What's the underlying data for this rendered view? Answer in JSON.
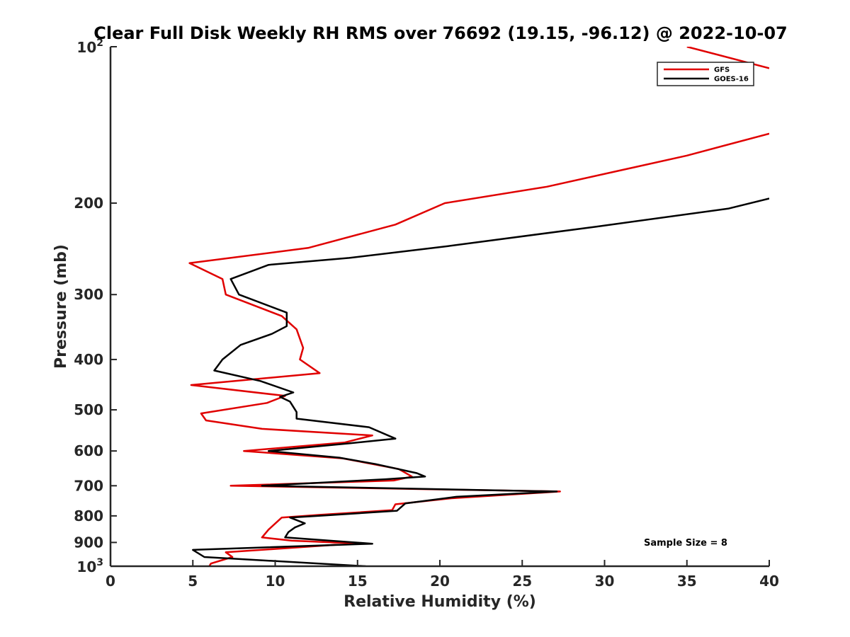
{
  "chart_data": {
    "type": "line",
    "title": "Clear Full Disk Weekly RH RMS over 76692 (19.15, -96.12) @ 2022-10-07",
    "xlabel": "Relative Humidity (%)",
    "ylabel": "Pressure (mb)",
    "xlim": [
      0,
      40
    ],
    "ylim": [
      100,
      1000
    ],
    "y_scale": "log",
    "y_reversed": true,
    "x_ticks": [
      0,
      5,
      10,
      15,
      20,
      25,
      30,
      35,
      40
    ],
    "x_tick_labels": [
      "0",
      "5",
      "10",
      "15",
      "20",
      "25",
      "30",
      "35",
      "40"
    ],
    "y_ticks": [
      200,
      300,
      400,
      500,
      600,
      700,
      800,
      900
    ],
    "y_tick_labels": [
      "200",
      "300",
      "400",
      "500",
      "600",
      "700",
      "800",
      "900"
    ],
    "y_end_ticks": [
      {
        "value": 100,
        "base": "10",
        "exp": "2"
      },
      {
        "value": 1000,
        "base": "10",
        "exp": "3"
      }
    ],
    "annotation": "Sample Size = 8",
    "legend_position": "top-right",
    "series": [
      {
        "name": "GFS",
        "color": "#e00000",
        "points": [
          [
            35,
            100
          ],
          [
            40,
            110
          ],
          null,
          [
            40,
            147
          ],
          [
            35,
            162
          ],
          [
            26.5,
            186
          ],
          [
            20.3,
            200
          ],
          [
            17.3,
            220
          ],
          [
            12,
            244
          ],
          [
            4.8,
            261
          ],
          [
            6.8,
            280
          ],
          [
            7,
            300
          ],
          [
            10.4,
            330
          ],
          [
            11.3,
            350
          ],
          [
            11.7,
            380
          ],
          [
            11.5,
            400
          ],
          [
            12.7,
            425
          ],
          [
            4.9,
            448
          ],
          [
            10.6,
            470
          ],
          [
            9.5,
            485
          ],
          [
            5.5,
            508
          ],
          [
            5.8,
            524
          ],
          [
            9.2,
            544
          ],
          [
            15.9,
            560
          ],
          [
            14.2,
            578
          ],
          [
            8.1,
            600
          ],
          [
            14.1,
            620
          ],
          [
            17.5,
            650
          ],
          [
            18.3,
            672
          ],
          [
            17.2,
            684
          ],
          [
            7.3,
            700
          ],
          [
            27.3,
            718
          ],
          [
            20.7,
            740
          ],
          [
            17.3,
            760
          ],
          [
            17.1,
            780
          ],
          [
            12.8,
            796
          ],
          [
            10.4,
            806
          ],
          [
            9.6,
            850
          ],
          [
            9.2,
            880
          ],
          [
            11,
            893
          ],
          [
            14.9,
            904
          ],
          [
            7.0,
            940
          ],
          [
            7.4,
            960
          ],
          [
            6.1,
            988
          ],
          [
            6.0,
            1000
          ]
        ]
      },
      {
        "name": "GOES-16",
        "color": "#000000",
        "points": [
          [
            40,
            196
          ],
          [
            37.5,
            205
          ],
          [
            29.5,
            222
          ],
          [
            20.5,
            242
          ],
          [
            14.5,
            255
          ],
          [
            9.6,
            263
          ],
          [
            7.3,
            280
          ],
          [
            7.8,
            300
          ],
          [
            10.7,
            325
          ],
          [
            10.7,
            345
          ],
          [
            9.8,
            357
          ],
          [
            7.9,
            375
          ],
          [
            6.8,
            400
          ],
          [
            6.3,
            420
          ],
          [
            9.1,
            440
          ],
          [
            11.1,
            463
          ],
          [
            10.3,
            472
          ],
          [
            10.9,
            482
          ],
          [
            11.3,
            505
          ],
          [
            11.3,
            520
          ],
          [
            15.7,
            540
          ],
          [
            17.3,
            568
          ],
          [
            14.5,
            580
          ],
          [
            9.6,
            600
          ],
          [
            13.9,
            618
          ],
          [
            16.1,
            636
          ],
          [
            18.6,
            662
          ],
          [
            19.1,
            672
          ],
          [
            16.7,
            680
          ],
          [
            9.2,
            700
          ],
          [
            27.1,
            718
          ],
          [
            21,
            735
          ],
          [
            17.9,
            757
          ],
          [
            17.4,
            782
          ],
          [
            13.1,
            798
          ],
          [
            10.9,
            806
          ],
          [
            11.8,
            827
          ],
          [
            11.2,
            842
          ],
          [
            10.8,
            860
          ],
          [
            10.6,
            880
          ],
          [
            15.9,
            905
          ],
          [
            5.0,
            930
          ],
          [
            5.7,
            960
          ],
          [
            15.5,
            1000
          ]
        ]
      }
    ]
  }
}
